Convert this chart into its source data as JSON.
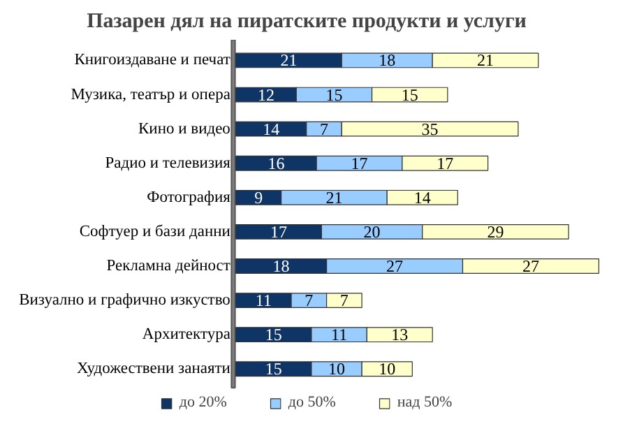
{
  "chart_data": {
    "type": "bar",
    "title": "Пазарен дял на пиратските продукти и услуги",
    "orientation": "horizontal",
    "stacked": true,
    "data_labels": true,
    "legend": "bottom",
    "grid": false,
    "categories": [
      "Книгоиздаване и печат",
      "Музика, театър и опера",
      "Кино и видео",
      "Радио и телевизия",
      "Фотография",
      "Софтуер и бази данни",
      "Рекламна дейност",
      "Визуално и графично изкуство",
      "Архитектура",
      "Художествени занаяти"
    ],
    "series": [
      {
        "name": "до 20%",
        "color": "#0f3466",
        "values": [
          21,
          12,
          14,
          16,
          9,
          17,
          18,
          11,
          15,
          15
        ]
      },
      {
        "name": "до 50%",
        "color": "#99ccff",
        "values": [
          18,
          15,
          7,
          17,
          21,
          20,
          27,
          7,
          11,
          10
        ]
      },
      {
        "name": "над 50%",
        "color": "#ffffcc",
        "values": [
          21,
          15,
          35,
          17,
          14,
          29,
          27,
          7,
          13,
          10
        ]
      }
    ]
  }
}
